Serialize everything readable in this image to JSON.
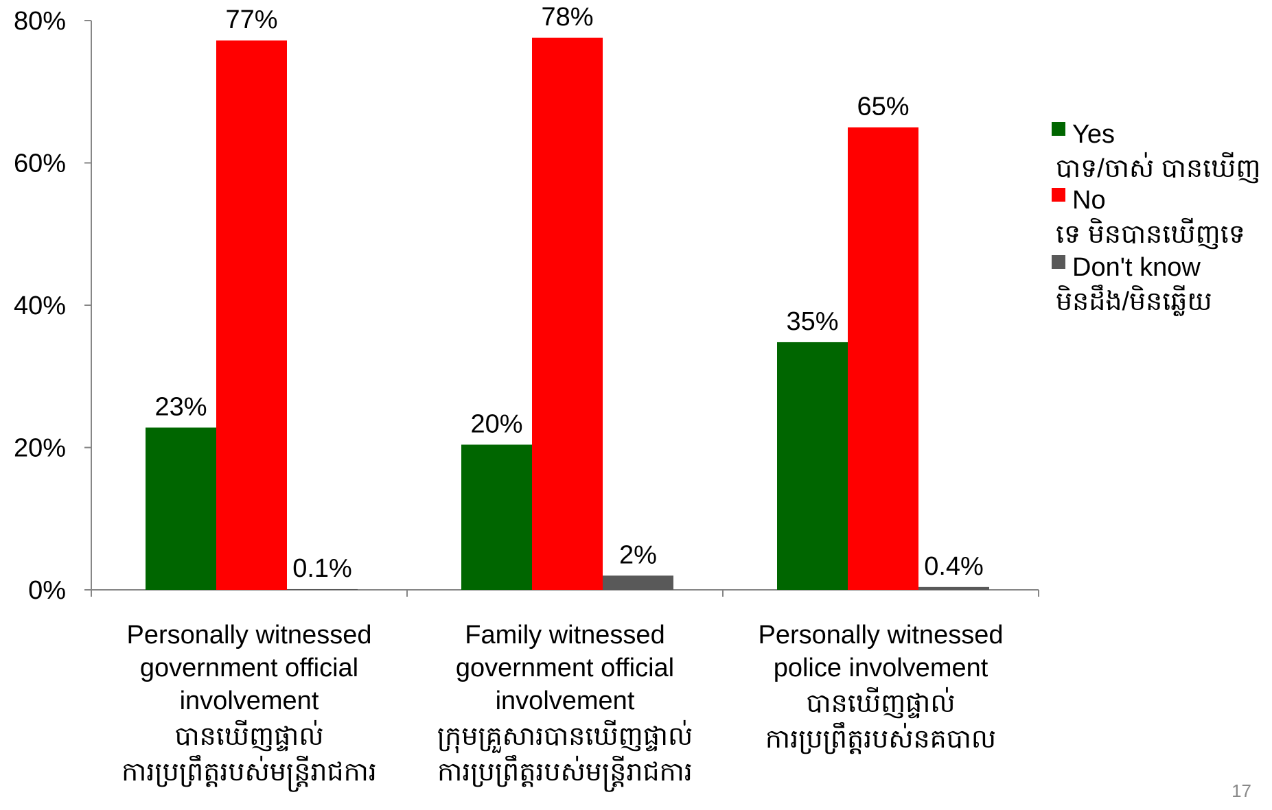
{
  "chart_data": {
    "type": "bar",
    "ylim": [
      0,
      80
    ],
    "y_ticks": [
      "0%",
      "20%",
      "40%",
      "60%",
      "80%"
    ],
    "y_tick_values": [
      0,
      20,
      40,
      60,
      80
    ],
    "categories": [
      {
        "lines": [
          "Personally witnessed",
          "government official",
          "involvement",
          "បានឃើញផ្ទាល់",
          "ការប្រព្រឹត្តរបស់មន្ត្រីរាជការ"
        ]
      },
      {
        "lines": [
          "Family witnessed",
          "government official",
          "involvement",
          "ក្រុមគ្រួសារបានឃើញផ្ទាល់",
          "ការប្រព្រឹត្តរបស់មន្ត្រីរាជការ"
        ]
      },
      {
        "lines": [
          "Personally witnessed",
          "police involvement",
          "បានឃើញផ្ទាល់",
          "ការប្រព្រឹត្តរបស់នគបាល"
        ]
      }
    ],
    "series": [
      {
        "name": "Yes",
        "name_km": "បាទ/ចាស់ បានឃើញ",
        "color": "#006600",
        "values": [
          22.8,
          20.4,
          34.8
        ],
        "labels": [
          "23%",
          "20%",
          "35%"
        ]
      },
      {
        "name": "No",
        "name_km": "ទេ មិនបានឃើញទេ",
        "color": "#ff0000",
        "values": [
          77.2,
          77.6,
          65.0
        ],
        "labels": [
          "77%",
          "78%",
          "65%"
        ]
      },
      {
        "name": "Don't know",
        "name_km": "មិនដឹង/មិនឆ្លើយ",
        "color": "#595959",
        "values": [
          0.1,
          2.0,
          0.4
        ],
        "labels": [
          "0.1%",
          "2%",
          "0.4%"
        ]
      }
    ],
    "legend_position": "right",
    "grid": false
  },
  "page_number": "17"
}
